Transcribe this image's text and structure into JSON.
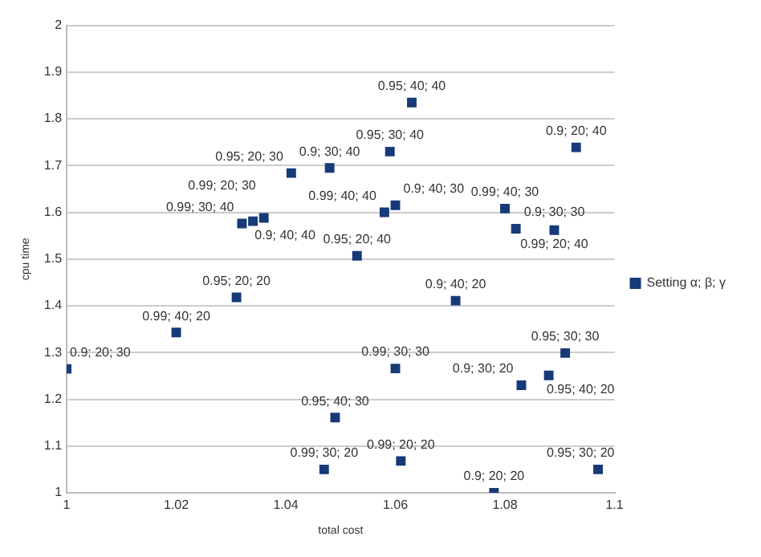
{
  "chart_data": {
    "type": "scatter",
    "xlabel": "total cost",
    "ylabel": "cpu time",
    "series": [
      {
        "name": "Setting α; β; γ",
        "color": "#173a78",
        "x": [
          1.0,
          1.02,
          1.031,
          1.049,
          1.047,
          1.061,
          1.06,
          1.078,
          1.097,
          1.083,
          1.088,
          1.091,
          1.071,
          1.053,
          1.058,
          1.06,
          1.08,
          1.082,
          1.089,
          1.093,
          1.059,
          1.048,
          1.063,
          1.041,
          1.032,
          1.034,
          1.036
        ],
        "values": [
          1.265,
          1.343,
          1.418,
          1.161,
          1.05,
          1.068,
          1.266,
          1.0,
          1.05,
          1.23,
          1.251,
          1.299,
          1.411,
          1.507,
          1.6,
          1.615,
          1.608,
          1.565,
          1.562,
          1.739,
          1.73,
          1.695,
          1.835,
          1.684,
          1.576,
          1.581,
          1.588
        ],
        "value_labels": [
          "0.9; 20; 30",
          "0.99; 40; 20",
          "0.95; 20; 20",
          "0.95; 40; 30",
          "0.99; 30; 20",
          "0.99; 20; 20",
          "0.99; 30; 30",
          "0.9; 20; 20",
          "0.95; 30; 20",
          "0.9; 30; 20",
          "0.95; 40; 20",
          "0.95; 30; 30",
          "0.9; 40; 20",
          "0.95; 20; 40",
          "0.99; 40; 40",
          "0.9; 40; 30",
          "0.99; 40; 30",
          "0.9; 30; 30",
          "0.99; 20; 40",
          "0.9; 20; 40",
          "0.95; 30; 40",
          "0.9; 30; 40",
          "0.95; 40; 40",
          "0.95; 20; 30",
          "0.99; 30; 40",
          "0.9; 40; 40",
          "0.99; 20; 30"
        ]
      }
    ],
    "xlim": [
      1,
      1.1
    ],
    "xticks": [
      1,
      1.02,
      1.04,
      1.06,
      1.08,
      1.1
    ],
    "ylim": [
      1,
      2
    ],
    "yticks": [
      1,
      1.1,
      1.2,
      1.3,
      1.4,
      1.5,
      1.6,
      1.7,
      1.8,
      1.9,
      2
    ],
    "grid": "y",
    "legend": "right",
    "marker": "square"
  }
}
